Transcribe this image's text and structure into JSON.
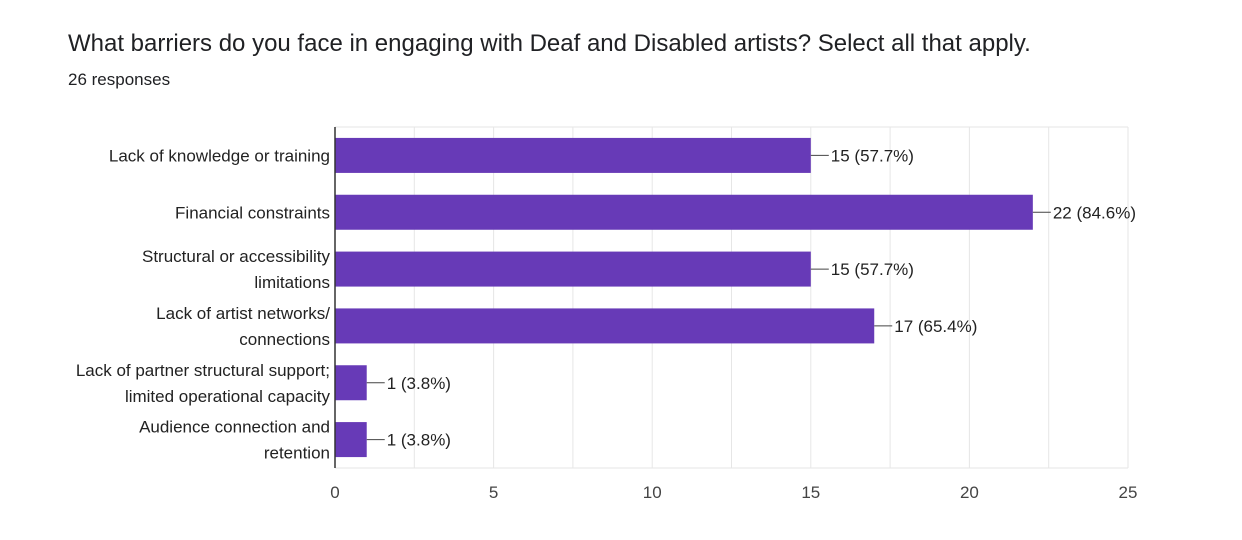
{
  "title": "What barriers do you face in engaging with Deaf and Disabled artists? Select all that apply.",
  "subtitle": "26 responses",
  "colors": {
    "bar": "#673ab7",
    "grid": "#e6e6e6",
    "axis": "#333333"
  },
  "chart_data": {
    "type": "bar",
    "orientation": "horizontal",
    "title": "What barriers do you face in engaging with Deaf and Disabled artists? Select all that apply.",
    "subtitle": "26 responses",
    "categories": [
      [
        "Lack of knowledge or training"
      ],
      [
        "Financial constraints"
      ],
      [
        "Structural or accessibility",
        "limitations"
      ],
      [
        "Lack of artist networks/",
        "connections"
      ],
      [
        "Lack of partner structural support;",
        "limited operational capacity"
      ],
      [
        "Audience connection and",
        "retention"
      ]
    ],
    "values": [
      15,
      22,
      15,
      17,
      1,
      1
    ],
    "data_labels": [
      "15 (57.7%)",
      "22 (84.6%)",
      "15 (57.7%)",
      "17 (65.4%)",
      "1 (3.8%)",
      "1 (3.8%)"
    ],
    "xlim": [
      0,
      25
    ],
    "xticks": [
      0,
      5,
      10,
      15,
      20,
      25
    ],
    "grid": true,
    "legend": "none"
  }
}
